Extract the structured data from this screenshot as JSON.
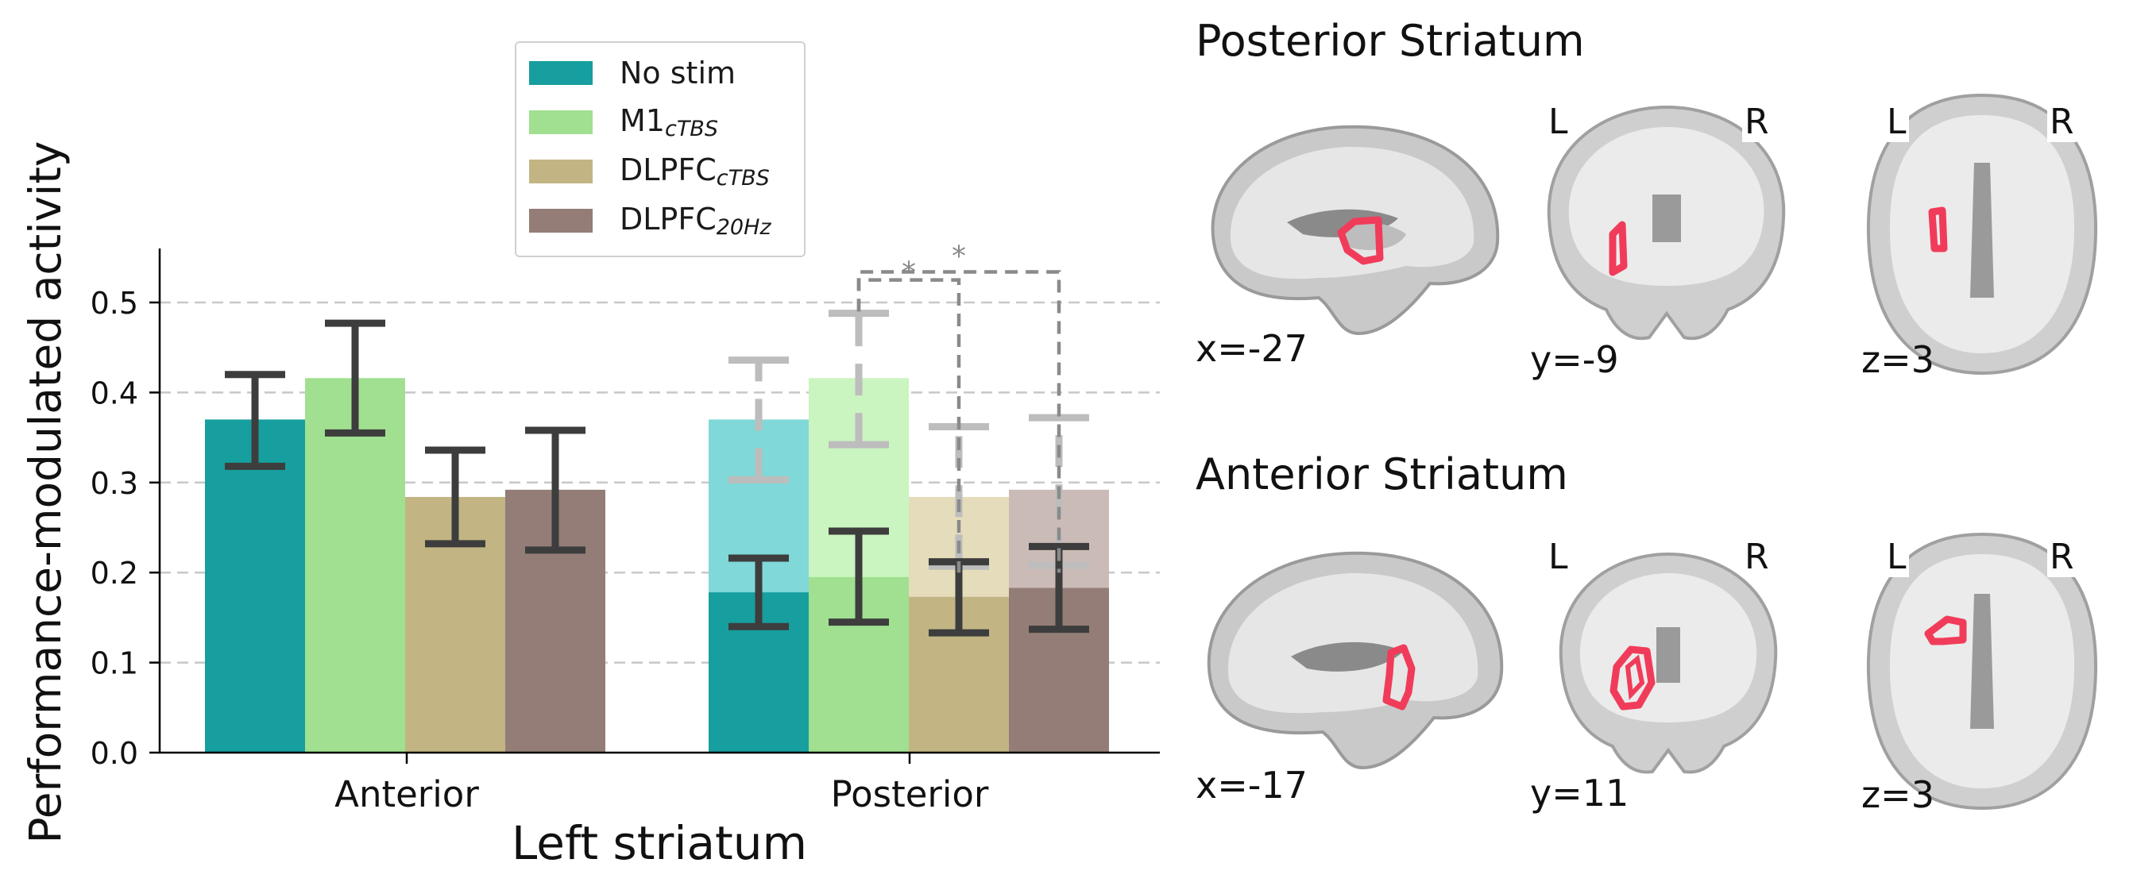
{
  "chart_data": {
    "type": "bar",
    "xlabel": "Left striatum",
    "ylabel": "Performance-modulated activity",
    "categories": [
      "Anterior",
      "Posterior"
    ],
    "ylim": [
      0,
      0.56
    ],
    "yticks": [
      "0.0",
      "0.1",
      "0.2",
      "0.3",
      "0.4",
      "0.5"
    ],
    "grid": "y-dashed",
    "legend_position": "top-center",
    "series": [
      {
        "name": "No stim",
        "name_base": "No stim",
        "name_sub": "",
        "color": "#179e9e",
        "light_color": "#80d8d8",
        "values": [
          0.37,
          0.178
        ],
        "err_low": [
          0.318,
          0.14
        ],
        "err_high": [
          0.42,
          0.216
        ],
        "ghost_value": 0.37,
        "ghost_err": [
          0.303,
          0.436
        ]
      },
      {
        "name": "M1cTBS",
        "name_base": "M1",
        "name_sub": "cTBS",
        "color": "#a0e090",
        "light_color": "#caf4c0",
        "values": [
          0.416,
          0.195
        ],
        "err_low": [
          0.355,
          0.145
        ],
        "err_high": [
          0.477,
          0.246
        ],
        "ghost_value": 0.416,
        "ghost_err": [
          0.342,
          0.488
        ]
      },
      {
        "name": "DLPFCcTBS",
        "name_base": "DLPFC",
        "name_sub": "cTBS",
        "color": "#c2b583",
        "light_color": "#e4dcba",
        "values": [
          0.284,
          0.173
        ],
        "err_low": [
          0.232,
          0.133
        ],
        "err_high": [
          0.336,
          0.212
        ],
        "ghost_value": 0.284,
        "ghost_err": [
          0.207,
          0.362
        ]
      },
      {
        "name": "DLPFC20Hz",
        "name_base": "DLPFC",
        "name_sub": "20Hz",
        "color": "#937d76",
        "light_color": "#cbbbb6",
        "values": [
          0.292,
          0.183
        ],
        "err_low": [
          0.225,
          0.137
        ],
        "err_high": [
          0.358,
          0.229
        ],
        "ghost_value": 0.292,
        "ghost_err": [
          0.208,
          0.372
        ]
      }
    ],
    "significance": [
      {
        "from": "M1cTBS",
        "to": "DLPFCcTBS",
        "label": "*"
      },
      {
        "from": "M1cTBS",
        "to": "DLPFC20Hz",
        "label": "*"
      }
    ]
  },
  "brain_panels": [
    {
      "title": "Posterior Striatum",
      "views": [
        {
          "view": "sagittal",
          "coord": "x=-27",
          "left": "",
          "right": ""
        },
        {
          "view": "coronal",
          "coord": "y=-9",
          "left": "L",
          "right": "R"
        },
        {
          "view": "axial",
          "coord": "z=3",
          "left": "L",
          "right": "R"
        }
      ]
    },
    {
      "title": "Anterior Striatum",
      "views": [
        {
          "view": "sagittal",
          "coord": "x=-17",
          "left": "",
          "right": ""
        },
        {
          "view": "coronal",
          "coord": "y=11",
          "left": "L",
          "right": "R"
        },
        {
          "view": "axial",
          "coord": "z=3",
          "left": "L",
          "right": "R"
        }
      ]
    }
  ],
  "roi_color": "#f03c5a"
}
